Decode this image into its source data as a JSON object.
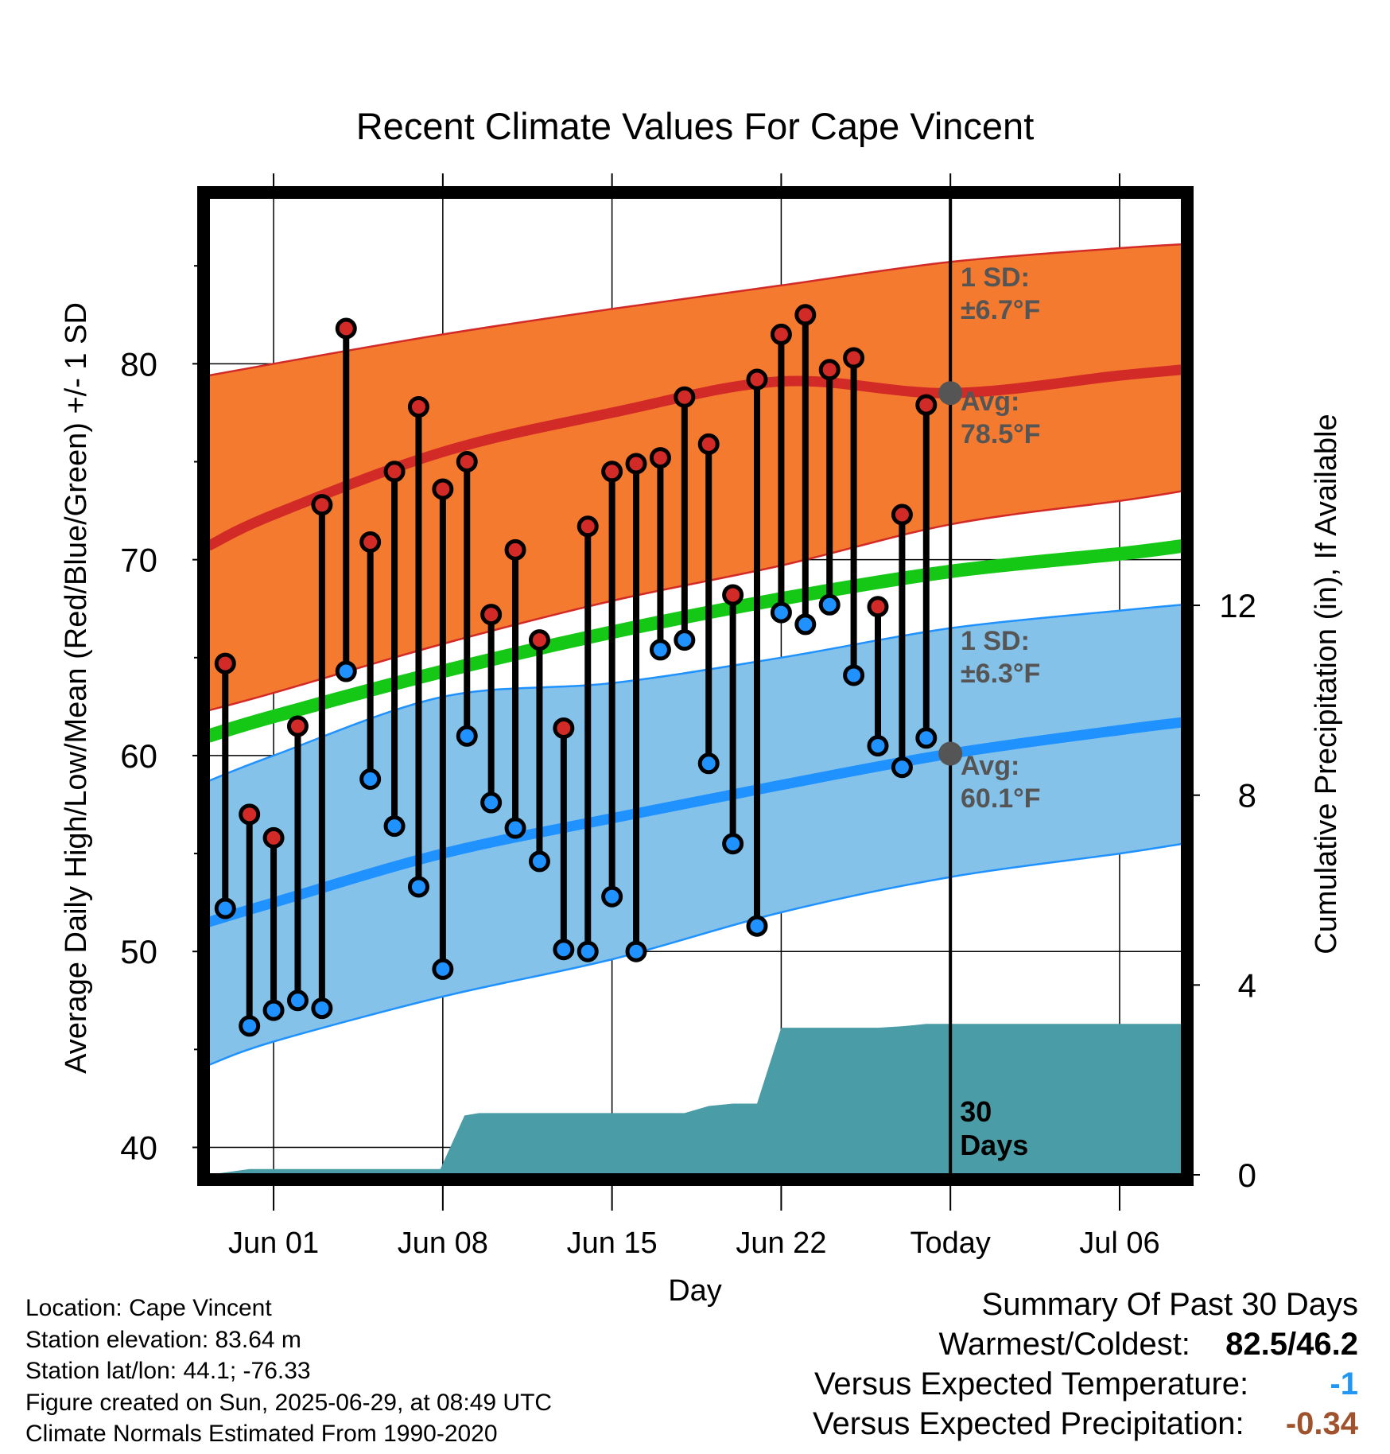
{
  "chart_data": {
    "type": "line",
    "title": "Recent Climate Values For Cape Vincent",
    "xlabel": "Day",
    "ylabel": "Average Daily High/Low/Mean (Red/Blue/Green) +/- 1 SD",
    "y2label": "Cumulative Precipitation (in), If Available",
    "ylim": [
      38.6,
      88.5
    ],
    "y2lim": [
      0,
      20.6
    ],
    "yticks": [
      "40",
      "50",
      "60",
      "70",
      "80"
    ],
    "y2ticks": [
      "0",
      "4",
      "8",
      "12"
    ],
    "xticks": [
      {
        "day": 0,
        "label": "Jun 01"
      },
      {
        "day": 7,
        "label": "Jun 08"
      },
      {
        "day": 14,
        "label": "Jun 15"
      },
      {
        "day": 21,
        "label": "Jun 22"
      },
      {
        "day": 28,
        "label": "Today"
      },
      {
        "day": 35,
        "label": "Jul 06"
      }
    ],
    "xlim": [
      -2.7,
      37.6
    ],
    "today_day": 28,
    "today_label_lines": [
      "30",
      "Days"
    ],
    "normals_days": [
      -2.7,
      0,
      7,
      14,
      21,
      28,
      35,
      37.6
    ],
    "normal_high": [
      70.7,
      72.3,
      75.5,
      77.5,
      79.1,
      78.5,
      79.4,
      79.7
    ],
    "normal_high_sd_upper": [
      79.4,
      80.0,
      81.5,
      82.8,
      84.0,
      85.2,
      85.9,
      86.1
    ],
    "normal_high_sd_lower": [
      62.3,
      63.2,
      65.7,
      67.9,
      69.7,
      71.8,
      73.0,
      73.5
    ],
    "normal_mean": [
      61.0,
      62.0,
      64.3,
      66.3,
      68.0,
      69.4,
      70.3,
      70.7
    ],
    "normal_low": [
      51.5,
      52.5,
      55.0,
      56.8,
      58.5,
      60.1,
      61.3,
      61.7
    ],
    "normal_low_sd_upper": [
      58.7,
      60.0,
      63.0,
      63.7,
      65.0,
      66.5,
      67.4,
      67.7
    ],
    "normal_low_sd_lower": [
      44.2,
      45.4,
      47.7,
      49.6,
      52.0,
      53.8,
      55.0,
      55.5
    ],
    "series": [
      {
        "name": "High",
        "days": [
          -2,
          -1,
          0,
          1,
          2,
          3,
          4,
          5,
          6,
          7,
          8,
          9,
          10,
          11,
          12,
          13,
          14,
          15,
          16,
          17,
          18,
          19,
          20,
          21,
          22,
          23,
          24,
          25,
          26,
          27
        ],
        "values": [
          64.7,
          57.0,
          55.8,
          61.5,
          72.8,
          81.8,
          70.9,
          74.5,
          77.8,
          73.6,
          75.0,
          67.2,
          70.5,
          65.9,
          61.4,
          71.7,
          74.5,
          74.9,
          75.2,
          78.3,
          75.9,
          68.2,
          79.2,
          81.5,
          82.5,
          79.7,
          80.3,
          67.6,
          72.3,
          77.9
        ]
      },
      {
        "name": "Low",
        "days": [
          -2,
          -1,
          0,
          1,
          2,
          3,
          4,
          5,
          6,
          7,
          8,
          9,
          10,
          11,
          12,
          13,
          14,
          15,
          16,
          17,
          18,
          19,
          20,
          21,
          22,
          23,
          24,
          25,
          26,
          27
        ],
        "values": [
          52.2,
          46.2,
          47.0,
          47.5,
          47.1,
          64.3,
          58.8,
          56.4,
          53.3,
          49.1,
          61.0,
          57.6,
          56.3,
          54.6,
          50.1,
          50.0,
          52.8,
          50.0,
          65.4,
          65.9,
          59.6,
          55.5,
          51.3,
          67.3,
          66.7,
          67.7,
          64.1,
          60.5,
          59.4,
          60.9
        ]
      },
      {
        "name": "Cumulative Precipitation",
        "days": [
          -2.7,
          -1,
          0,
          6.9,
          7.9,
          8.5,
          17,
          18,
          19,
          20,
          21,
          23,
          25,
          26,
          27,
          28,
          37.6
        ],
        "values": [
          0,
          0.12,
          0.12,
          0.12,
          1.25,
          1.3,
          1.3,
          1.45,
          1.5,
          1.5,
          3.1,
          3.1,
          3.1,
          3.13,
          3.18,
          3.18,
          3.18
        ]
      }
    ],
    "annotations": [
      {
        "key": "high",
        "lines": [
          "1 SD:",
          "±6.7°F",
          "Avg:",
          "78.5°F"
        ]
      },
      {
        "key": "low",
        "lines": [
          "1 SD:",
          "±6.3°F",
          "Avg:",
          "60.1°F"
        ]
      }
    ],
    "colors": {
      "high_band": "#f47a30",
      "high_line": "#d22a26",
      "mean_line": "#16c816",
      "low_band": "#85c2ea",
      "low_line": "#1f92ff",
      "precip": "#4a9ca6",
      "high_dot": "#d22a26",
      "low_dot": "#1f92ff",
      "annotation": "#555555",
      "marker": "#555555"
    }
  },
  "footer": {
    "location": "Location: Cape Vincent",
    "elevation": "Station elevation: 83.64 m",
    "latlon": "Station lat/lon: 44.1; -76.33",
    "created": "Figure created on Sun, 2025-06-29, at 08:49 UTC",
    "normals": "Climate Normals Estimated From 1990-2020"
  },
  "summary": {
    "heading": "Summary Of Past 30 Days",
    "warm_cold_label": "Warmest/Coldest:",
    "warm_cold_value": "82.5/46.2",
    "temp_label": "Versus Expected Temperature:",
    "temp_value": "-1",
    "temp_color": "#2196f3",
    "precip_label": "Versus Expected Precipitation:",
    "precip_value": "-0.34",
    "precip_color": "#a0522d"
  }
}
